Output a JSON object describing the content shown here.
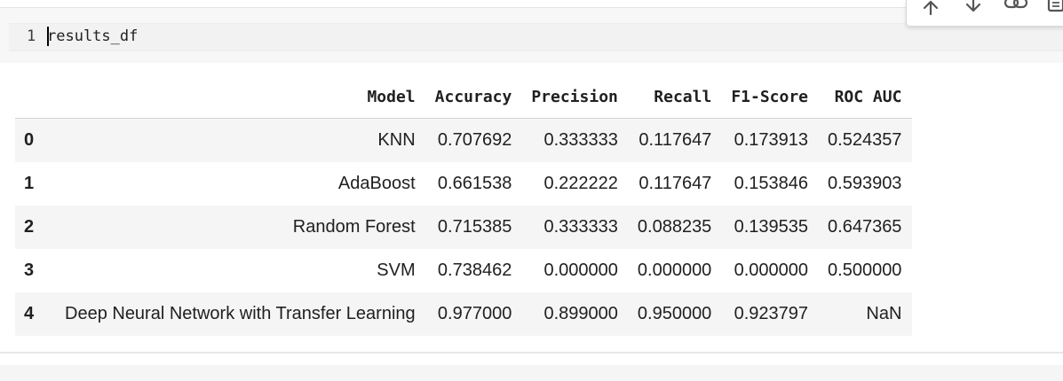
{
  "code_cell": {
    "line_number": "1",
    "code": "results_df"
  },
  "toolbar": {
    "icons": [
      "arrow-up-icon",
      "arrow-down-icon",
      "link-icon",
      "comment-icon"
    ]
  },
  "dataframe": {
    "columns": [
      "",
      "Model",
      "Accuracy",
      "Precision",
      "Recall",
      "F1-Score",
      "ROC AUC"
    ],
    "rows": [
      {
        "index": "0",
        "model": "KNN",
        "accuracy": "0.707692",
        "precision": "0.333333",
        "recall": "0.117647",
        "f1": "0.173913",
        "roc_auc": "0.524357"
      },
      {
        "index": "1",
        "model": "AdaBoost",
        "accuracy": "0.661538",
        "precision": "0.222222",
        "recall": "0.117647",
        "f1": "0.153846",
        "roc_auc": "0.593903"
      },
      {
        "index": "2",
        "model": "Random Forest",
        "accuracy": "0.715385",
        "precision": "0.333333",
        "recall": "0.088235",
        "f1": "0.139535",
        "roc_auc": "0.647365"
      },
      {
        "index": "3",
        "model": "SVM",
        "accuracy": "0.738462",
        "precision": "0.000000",
        "recall": "0.000000",
        "f1": "0.000000",
        "roc_auc": "0.500000"
      },
      {
        "index": "4",
        "model": "Deep Neural Network with Transfer Learning",
        "accuracy": "0.977000",
        "precision": "0.899000",
        "recall": "0.950000",
        "f1": "0.923797",
        "roc_auc": "NaN"
      }
    ]
  }
}
